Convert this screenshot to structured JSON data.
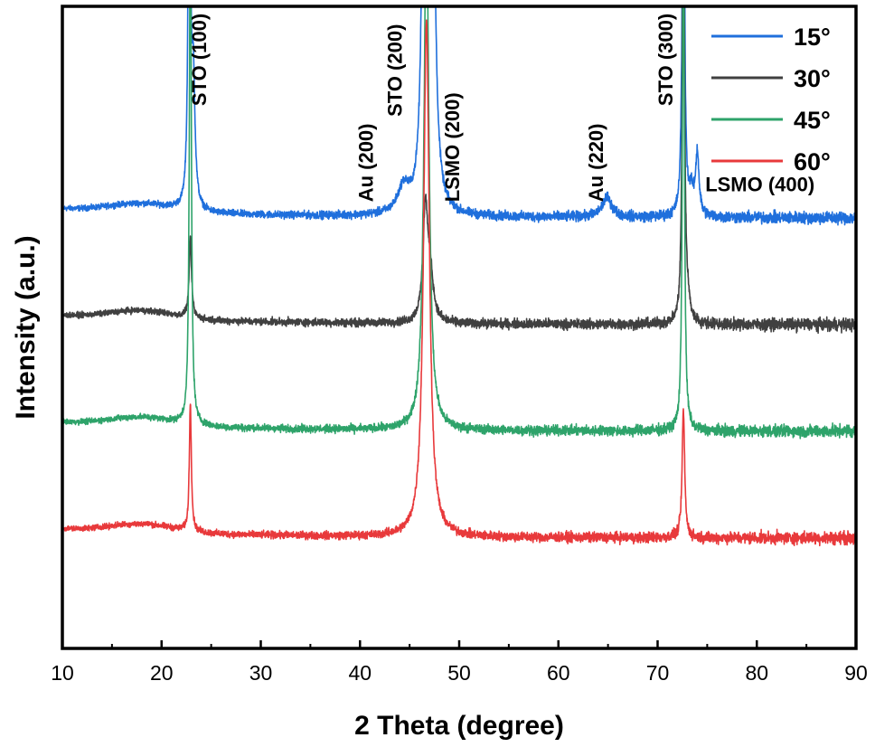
{
  "chart_data": {
    "type": "line",
    "title": "",
    "xlabel": "2 Theta (degree)",
    "ylabel": "Intensity (a.u.)",
    "xlim": [
      10,
      90
    ],
    "x_ticks": [
      10,
      20,
      30,
      40,
      50,
      60,
      70,
      80,
      90
    ],
    "y_ticks_shown": false,
    "grid": false,
    "legend_position": "top-right",
    "series": [
      {
        "name": "15°",
        "color": "#1f6fdc",
        "baseline_offset": 3,
        "peaks": [
          {
            "x": 22.8,
            "height": 10,
            "width": 0.12
          },
          {
            "x": 23.2,
            "height": 2.4,
            "width": 0.2
          },
          {
            "x": 44.4,
            "height": 0.5,
            "width": 0.7
          },
          {
            "x": 46.5,
            "height": 10,
            "width": 0.25
          },
          {
            "x": 47.3,
            "height": 8,
            "width": 0.3
          },
          {
            "x": 64.9,
            "height": 0.38,
            "width": 0.6
          },
          {
            "x": 72.6,
            "height": 10,
            "width": 0.12
          },
          {
            "x": 74.0,
            "height": 1.2,
            "width": 0.2
          },
          {
            "x": 73.4,
            "height": 0.4,
            "width": 0.3
          }
        ]
      },
      {
        "name": "30°",
        "color": "#404040",
        "baseline_offset": 2,
        "peaks": [
          {
            "x": 22.9,
            "height": 1.5,
            "width": 0.15
          },
          {
            "x": 46.6,
            "height": 2.2,
            "width": 0.3
          },
          {
            "x": 47.1,
            "height": 0.8,
            "width": 0.35
          },
          {
            "x": 72.6,
            "height": 10,
            "width": 0.12
          },
          {
            "x": 73.0,
            "height": 0.35,
            "width": 0.3
          }
        ]
      },
      {
        "name": "45°",
        "color": "#2ea36a",
        "baseline_offset": 1,
        "peaks": [
          {
            "x": 22.9,
            "height": 10,
            "width": 0.12
          },
          {
            "x": 46.7,
            "height": 10,
            "width": 0.3
          },
          {
            "x": 72.6,
            "height": 10,
            "width": 0.12
          }
        ]
      },
      {
        "name": "60°",
        "color": "#e8393b",
        "baseline_offset": 0,
        "peaks": [
          {
            "x": 22.9,
            "height": 2.5,
            "width": 0.12
          },
          {
            "x": 46.7,
            "height": 10,
            "width": 0.35
          },
          {
            "x": 72.6,
            "height": 2.5,
            "width": 0.15
          }
        ]
      }
    ],
    "annotations": [
      {
        "text": "STO (100)",
        "x": 24.5,
        "y_level": 4.05,
        "rotate": true
      },
      {
        "text": "Au (200)",
        "x": 41.3,
        "y_level": 3.15,
        "rotate": true
      },
      {
        "text": "STO (200)",
        "x": 44.2,
        "y_level": 3.95,
        "rotate": true
      },
      {
        "text": "LSMO (200)",
        "x": 50.0,
        "y_level": 3.15,
        "rotate": true
      },
      {
        "text": "Au (220)",
        "x": 64.5,
        "y_level": 3.15,
        "rotate": true
      },
      {
        "text": "STO (300)",
        "x": 71.5,
        "y_level": 4.05,
        "rotate": true
      },
      {
        "text": "LSMO (400)",
        "x": 74.8,
        "y_level": 3.25,
        "rotate": false
      }
    ]
  }
}
